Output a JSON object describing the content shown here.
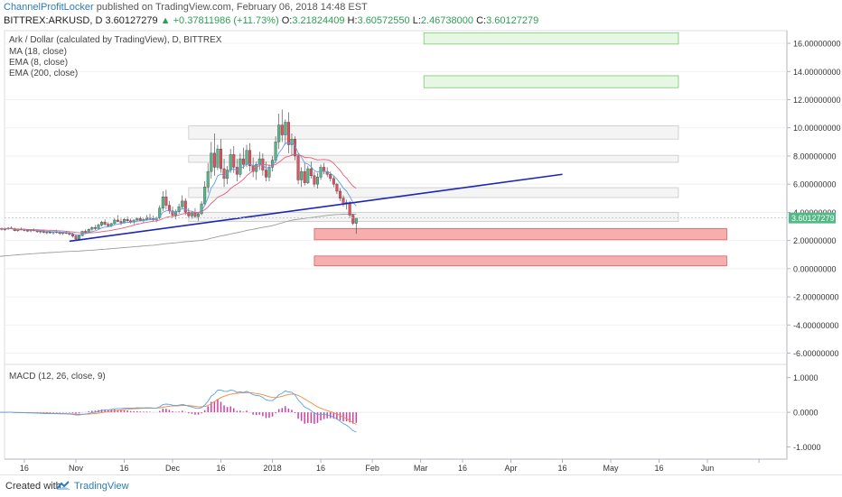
{
  "header": {
    "author": "ChannelProfitLocker",
    "published": "published on TradingView.com, February 06, 2018 14:48 EST",
    "symbol": "BITTREX:ARKUSD, D",
    "last": "3.60127279",
    "change": "+0.37811986 (+11.73%)",
    "open_label": "O:",
    "open": "3.21824409",
    "high_label": "H:",
    "high": "3.60572550",
    "low_label": "L:",
    "low": "2.46738000",
    "close_label": "C:",
    "close": "3.60127279"
  },
  "footer": {
    "created": "Created with",
    "brand": "TradingView"
  },
  "chart_data": {
    "type": "candlestick",
    "title": "Ark / Dollar (calculated by TradingView), D, BITTREX",
    "legend": [
      "MA (18, close)",
      "EMA (8, close)",
      "EMA (200, close)"
    ],
    "price_axis": {
      "range": [
        -6.8,
        16.9
      ],
      "ticks": [
        16,
        14,
        12,
        10,
        8,
        6,
        4,
        2,
        0,
        -2,
        -4,
        -6
      ],
      "tick_labels": [
        "16.00000000",
        "14.00000000",
        "12.00000000",
        "10.00000000",
        "8.00000000",
        "6.00000000",
        "4.00000000",
        "2.00000000",
        "0.00000000",
        "-2.00000000",
        "-4.00000000",
        "-6.00000000"
      ],
      "last_price_label": "3.60127279",
      "last_price": 3.6
    },
    "time_axis_labels": [
      "16",
      "Nov",
      "16",
      "Dec",
      "16",
      "2018",
      "16",
      "Feb",
      "Mar",
      "16",
      "Apr",
      "16",
      "May",
      "16",
      "Jun"
    ],
    "candles": {
      "start": "2017-10-08",
      "ohlc": [
        [
          2.8,
          2.95,
          2.7,
          2.85
        ],
        [
          2.85,
          2.92,
          2.72,
          2.78
        ],
        [
          2.78,
          2.9,
          2.7,
          2.82
        ],
        [
          2.82,
          2.95,
          2.75,
          2.88
        ],
        [
          2.88,
          3.0,
          2.8,
          2.84
        ],
        [
          2.84,
          2.9,
          2.65,
          2.7
        ],
        [
          2.7,
          2.85,
          2.62,
          2.8
        ],
        [
          2.8,
          2.92,
          2.72,
          2.76
        ],
        [
          2.76,
          2.85,
          2.65,
          2.72
        ],
        [
          2.72,
          2.8,
          2.6,
          2.68
        ],
        [
          2.68,
          2.78,
          2.58,
          2.74
        ],
        [
          2.74,
          2.85,
          2.65,
          2.7
        ],
        [
          2.7,
          2.78,
          2.55,
          2.62
        ],
        [
          2.62,
          2.72,
          2.5,
          2.66
        ],
        [
          2.66,
          2.75,
          2.52,
          2.58
        ],
        [
          2.58,
          2.68,
          2.45,
          2.6
        ],
        [
          2.6,
          2.7,
          2.48,
          2.55
        ],
        [
          2.55,
          2.65,
          2.42,
          2.62
        ],
        [
          2.62,
          2.75,
          2.5,
          2.58
        ],
        [
          2.58,
          2.65,
          2.4,
          2.5
        ],
        [
          2.5,
          2.62,
          2.38,
          2.56
        ],
        [
          2.56,
          2.66,
          2.45,
          2.52
        ],
        [
          2.52,
          2.6,
          2.35,
          2.45
        ],
        [
          2.45,
          2.55,
          2.2,
          2.32
        ],
        [
          2.32,
          2.45,
          2.0,
          2.1
        ],
        [
          2.1,
          2.4,
          2.02,
          2.35
        ],
        [
          2.35,
          2.7,
          2.3,
          2.65
        ],
        [
          2.65,
          2.8,
          2.5,
          2.58
        ],
        [
          2.58,
          2.85,
          2.55,
          2.8
        ],
        [
          2.8,
          3.0,
          2.7,
          2.92
        ],
        [
          2.92,
          3.1,
          2.75,
          2.85
        ],
        [
          2.85,
          3.2,
          2.8,
          3.1
        ],
        [
          3.1,
          3.4,
          3.0,
          3.3
        ],
        [
          3.3,
          3.5,
          3.05,
          3.15
        ],
        [
          3.15,
          3.3,
          2.95,
          3.05
        ],
        [
          3.05,
          3.25,
          2.95,
          3.2
        ],
        [
          3.2,
          3.6,
          3.1,
          3.45
        ],
        [
          3.45,
          3.8,
          3.3,
          3.35
        ],
        [
          3.35,
          3.55,
          3.1,
          3.25
        ],
        [
          3.25,
          3.6,
          3.2,
          3.5
        ],
        [
          3.5,
          3.7,
          3.3,
          3.4
        ],
        [
          3.4,
          3.55,
          3.2,
          3.3
        ],
        [
          3.3,
          3.5,
          3.15,
          3.45
        ],
        [
          3.45,
          3.65,
          3.3,
          3.55
        ],
        [
          3.55,
          3.7,
          3.35,
          3.42
        ],
        [
          3.42,
          3.6,
          3.25,
          3.5
        ],
        [
          3.5,
          3.8,
          3.4,
          3.62
        ],
        [
          3.62,
          3.9,
          3.45,
          3.55
        ],
        [
          3.55,
          3.75,
          3.35,
          3.48
        ],
        [
          3.48,
          3.7,
          3.3,
          3.6
        ],
        [
          3.6,
          4.5,
          3.5,
          4.3
        ],
        [
          4.3,
          5.5,
          4.1,
          5.1
        ],
        [
          5.1,
          5.6,
          4.2,
          4.5
        ],
        [
          4.5,
          4.8,
          3.9,
          4.1
        ],
        [
          4.1,
          4.4,
          3.6,
          3.8
        ],
        [
          3.8,
          4.2,
          3.5,
          4.05
        ],
        [
          4.05,
          4.6,
          3.9,
          4.4
        ],
        [
          4.4,
          5.2,
          4.2,
          4.8
        ],
        [
          4.8,
          5.0,
          3.8,
          4.0
        ],
        [
          4.0,
          4.3,
          3.6,
          3.75
        ],
        [
          3.75,
          4.1,
          3.55,
          3.95
        ],
        [
          3.95,
          4.3,
          3.6,
          3.7
        ],
        [
          3.7,
          4.0,
          3.4,
          3.9
        ],
        [
          3.9,
          4.8,
          3.8,
          4.6
        ],
        [
          4.6,
          6.2,
          4.5,
          5.8
        ],
        [
          5.8,
          7.5,
          5.4,
          6.9
        ],
        [
          6.9,
          9.0,
          6.4,
          8.2
        ],
        [
          8.2,
          9.6,
          6.6,
          7.2
        ],
        [
          7.2,
          8.8,
          7.0,
          8.5
        ],
        [
          8.5,
          9.2,
          6.8,
          7.1
        ],
        [
          7.1,
          7.8,
          5.8,
          6.4
        ],
        [
          6.4,
          7.3,
          6.0,
          7.0
        ],
        [
          7.0,
          8.5,
          6.8,
          8.1
        ],
        [
          8.1,
          8.7,
          6.8,
          7.2
        ],
        [
          7.2,
          7.8,
          6.2,
          6.7
        ],
        [
          6.7,
          8.2,
          6.5,
          7.8
        ],
        [
          7.8,
          8.6,
          7.1,
          7.4
        ],
        [
          7.4,
          8.8,
          7.2,
          8.4
        ],
        [
          8.4,
          8.9,
          6.9,
          7.3
        ],
        [
          7.3,
          7.9,
          6.5,
          6.9
        ],
        [
          6.9,
          7.6,
          6.3,
          7.4
        ],
        [
          7.4,
          8.3,
          7.0,
          7.8
        ],
        [
          7.8,
          8.2,
          6.6,
          7.0
        ],
        [
          7.0,
          7.6,
          6.2,
          6.5
        ],
        [
          6.5,
          7.4,
          6.2,
          7.2
        ],
        [
          7.2,
          8.0,
          6.9,
          7.7
        ],
        [
          7.7,
          9.4,
          7.5,
          9.0
        ],
        [
          9.0,
          11.0,
          8.5,
          10.2
        ],
        [
          10.2,
          11.3,
          9.0,
          9.5
        ],
        [
          9.5,
          10.6,
          8.8,
          10.4
        ],
        [
          10.4,
          11.1,
          8.2,
          8.8
        ],
        [
          8.8,
          9.6,
          8.0,
          9.2
        ],
        [
          9.2,
          9.4,
          7.7,
          8.0
        ],
        [
          8.0,
          8.2,
          6.0,
          6.3
        ],
        [
          6.3,
          7.2,
          5.8,
          6.9
        ],
        [
          6.9,
          7.5,
          5.9,
          6.1
        ],
        [
          6.1,
          7.3,
          6.0,
          7.1
        ],
        [
          7.1,
          7.6,
          6.4,
          6.6
        ],
        [
          6.6,
          6.9,
          5.8,
          6.0
        ],
        [
          6.0,
          6.8,
          5.7,
          6.5
        ],
        [
          6.5,
          7.4,
          6.3,
          7.2
        ],
        [
          7.2,
          7.5,
          6.7,
          6.9
        ],
        [
          6.9,
          7.2,
          6.5,
          6.7
        ],
        [
          6.7,
          6.9,
          6.2,
          6.4
        ],
        [
          6.4,
          6.6,
          5.8,
          6.0
        ],
        [
          6.0,
          6.1,
          5.3,
          5.5
        ],
        [
          5.5,
          5.7,
          4.8,
          5.0
        ],
        [
          5.0,
          5.2,
          4.4,
          4.6
        ],
        [
          4.6,
          4.9,
          4.2,
          4.7
        ],
        [
          4.7,
          4.8,
          3.6,
          3.8
        ],
        [
          3.8,
          3.9,
          3.1,
          3.22
        ],
        [
          3.22,
          3.61,
          2.47,
          3.6
        ]
      ]
    },
    "overlay_lines": [
      {
        "kind": "trendline",
        "from": {
          "date": "2017-10-30",
          "price": 1.95
        },
        "to": {
          "date": "2018-04-01",
          "price": 6.7
        },
        "color": "#1c25b6"
      }
    ],
    "boxes": [
      {
        "from": "2018-02-17",
        "to": "2018-05-07",
        "low": 15.95,
        "high": 16.75,
        "fill": "#e6f7e4",
        "stroke": "#79c96e"
      },
      {
        "from": "2018-02-17",
        "to": "2018-05-07",
        "low": 12.85,
        "high": 13.7,
        "fill": "#e6f7e4",
        "stroke": "#79c96e"
      },
      {
        "from": "2017-12-06",
        "to": "2018-05-07",
        "low": 9.2,
        "high": 10.15,
        "fill": "#f4f4f4",
        "stroke": "#c8c8c8"
      },
      {
        "from": "2017-12-06",
        "to": "2018-05-07",
        "low": 7.55,
        "high": 8.05,
        "fill": "#f4f4f4",
        "stroke": "#c8c8c8"
      },
      {
        "from": "2017-12-06",
        "to": "2018-05-07",
        "low": 5.05,
        "high": 5.75,
        "fill": "#f4f4f4",
        "stroke": "#c8c8c8"
      },
      {
        "from": "2017-12-06",
        "to": "2018-05-07",
        "low": 3.35,
        "high": 4.0,
        "fill": "#f4f4f4",
        "stroke": "#c8c8c8"
      },
      {
        "from": "2018-01-14",
        "to": "2018-05-22",
        "low": 2.05,
        "high": 2.85,
        "fill": "#f6aeae",
        "stroke": "#e06060"
      },
      {
        "from": "2018-01-14",
        "to": "2018-05-22",
        "low": 0.2,
        "high": 0.9,
        "fill": "#f6aeae",
        "stroke": "#e06060"
      }
    ],
    "macd": {
      "title": "MACD (12, 26, close, 9)",
      "range": [
        -1.35,
        1.38
      ],
      "ticks": [
        1.0,
        0.0,
        -1.0
      ],
      "tick_labels": [
        "1.0000",
        "0.0000",
        "-1.0000"
      ]
    },
    "colors": {
      "up": "#53b987",
      "down": "#eb4d5c",
      "ma": "#e65c7a",
      "ema8": "#5c9ded",
      "ema200": "#9c9c9c",
      "macd": "#57a3e3",
      "signal": "#f3873c",
      "hist": "#d13fa3"
    }
  }
}
